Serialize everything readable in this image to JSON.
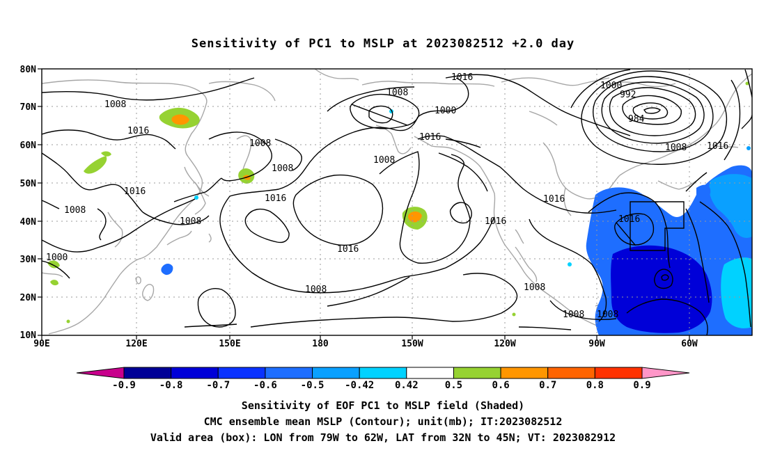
{
  "title": "Sensitivity of PC1 to MSLP at 2023082512 +2.0 day",
  "captions": {
    "line1": "Sensitivity of EOF PC1 to MSLP field (Shaded)",
    "line2": "CMC ensemble mean MSLP (Contour); unit(mb); IT:2023082512",
    "line3": "Valid area (box): LON from 79W to 62W, LAT from 32N to 45N; VT: 2023082912"
  },
  "lat_ticks": [
    "80N",
    "70N",
    "60N",
    "50N",
    "40N",
    "30N",
    "20N",
    "10N"
  ],
  "lon_ticks": [
    "90E",
    "120E",
    "150E",
    "180",
    "150W",
    "120W",
    "90W",
    "60W"
  ],
  "colorbar": {
    "labels": [
      "-0.9",
      "-0.8",
      "-0.7",
      "-0.6",
      "-0.5",
      "-0.42",
      "0.42",
      "0.5",
      "0.6",
      "0.7",
      "0.8",
      "0.9"
    ],
    "colors": [
      "#000096",
      "#0000d8",
      "#0a32ff",
      "#1e6eff",
      "#0aa0ff",
      "#00d2ff",
      "#ffffff",
      "#96d232",
      "#ff9600",
      "#ff6400",
      "#ff3200",
      "#ff0000"
    ],
    "low_color": "#c8008c",
    "high_color": "#ff96c8"
  },
  "contour_labels": [
    {
      "id": "c1",
      "text": "1016"
    },
    {
      "id": "c2",
      "text": "1008"
    },
    {
      "id": "c3",
      "text": "1000"
    },
    {
      "id": "c4",
      "text": "1008"
    },
    {
      "id": "c5",
      "text": "1016"
    },
    {
      "id": "c6",
      "text": "1000"
    },
    {
      "id": "c7",
      "text": "992"
    },
    {
      "id": "c8",
      "text": "984"
    },
    {
      "id": "c9",
      "text": "1008"
    },
    {
      "id": "c10",
      "text": "1016"
    },
    {
      "id": "c11",
      "text": "1008"
    },
    {
      "id": "c12",
      "text": "1016"
    },
    {
      "id": "c13",
      "text": "1008"
    },
    {
      "id": "c14",
      "text": "1008"
    },
    {
      "id": "c15",
      "text": "1016"
    },
    {
      "id": "c16",
      "text": "1008"
    },
    {
      "id": "c17",
      "text": "1016"
    },
    {
      "id": "c18",
      "text": "1008"
    },
    {
      "id": "c19",
      "text": "1016"
    },
    {
      "id": "c20",
      "text": "1016"
    },
    {
      "id": "c21",
      "text": "1016"
    },
    {
      "id": "c22",
      "text": "1000"
    },
    {
      "id": "c23",
      "text": "1016"
    },
    {
      "id": "c24",
      "text": "1008"
    },
    {
      "id": "c25",
      "text": "1008"
    },
    {
      "id": "c26",
      "text": "1008"
    }
  ]
}
